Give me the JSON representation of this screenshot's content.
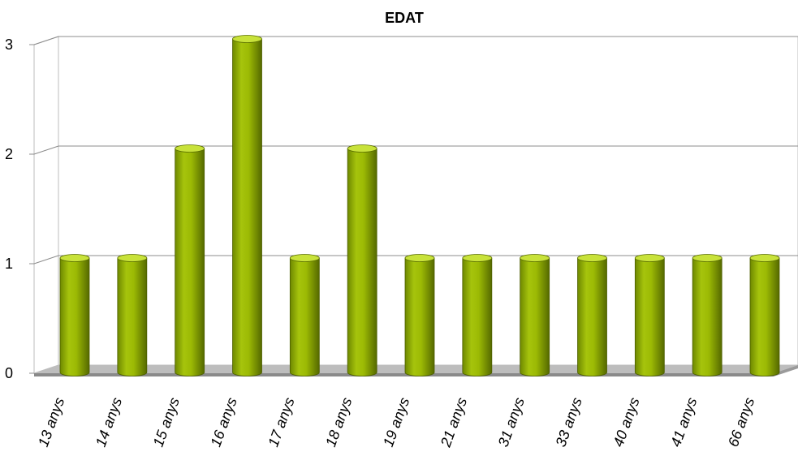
{
  "chart_data": {
    "type": "bar",
    "title": "EDAT",
    "xlabel": "",
    "ylabel": "",
    "categories": [
      "13 anys",
      "14 anys",
      "15 anys",
      "16 anys",
      "17 anys",
      "18 anys",
      "19 anys",
      "21 anys",
      "31 anys",
      "33 anys",
      "40 anys",
      "41 anys",
      "66 anys"
    ],
    "values": [
      1,
      1,
      2,
      3,
      1,
      2,
      1,
      1,
      1,
      1,
      1,
      1,
      1
    ],
    "ylim": [
      0,
      3
    ],
    "yticks": [
      "0",
      "1",
      "2",
      "3"
    ],
    "grid": true,
    "legend": "none",
    "style": "3d-cylinder",
    "colors": {
      "bar": "#99B800",
      "bar_dark": "#5E7300",
      "bar_top": "#C8E23A",
      "floor": "#BDBDBD",
      "grid": "#8C8C8C"
    }
  }
}
